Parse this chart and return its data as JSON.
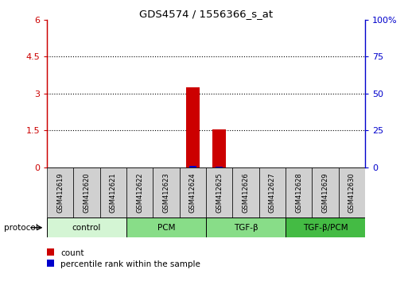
{
  "title": "GDS4574 / 1556366_s_at",
  "samples": [
    "GSM412619",
    "GSM412620",
    "GSM412621",
    "GSM412622",
    "GSM412623",
    "GSM412624",
    "GSM412625",
    "GSM412626",
    "GSM412627",
    "GSM412628",
    "GSM412629",
    "GSM412630"
  ],
  "count_values": [
    0,
    0,
    0,
    0,
    0,
    3.25,
    1.55,
    0,
    0,
    0,
    0,
    0
  ],
  "percentile_values": [
    0,
    0,
    0,
    0,
    0,
    3.0,
    2.5,
    0,
    0,
    0,
    0,
    0
  ],
  "left_yticks": [
    0,
    1.5,
    3,
    4.5,
    6
  ],
  "left_ylim": [
    0,
    6
  ],
  "right_yticks": [
    0,
    25,
    50,
    75,
    100
  ],
  "right_ylim": [
    0,
    100
  ],
  "right_yticklabels": [
    "0",
    "25",
    "50",
    "75",
    "100%"
  ],
  "left_yticklabels": [
    "0",
    "1.5",
    "3",
    "4.5",
    "6"
  ],
  "grid_yticks": [
    1.5,
    3,
    4.5
  ],
  "groups": [
    {
      "label": "control",
      "start": 0,
      "end": 3,
      "color": "#d4f5d4"
    },
    {
      "label": "PCM",
      "start": 3,
      "end": 6,
      "color": "#88dd88"
    },
    {
      "label": "TGF-β",
      "start": 6,
      "end": 9,
      "color": "#88dd88"
    },
    {
      "label": "TGF-β/PCM",
      "start": 9,
      "end": 12,
      "color": "#44bb44"
    }
  ],
  "bar_color": "#cc0000",
  "percentile_color": "#0000cc",
  "left_axis_color": "#cc0000",
  "right_axis_color": "#0000cc",
  "grid_color": "#000000",
  "bg_color": "#ffffff",
  "sample_box_color": "#d0d0d0",
  "protocol_label": "protocol",
  "legend_count": "count",
  "legend_percentile": "percentile rank within the sample"
}
